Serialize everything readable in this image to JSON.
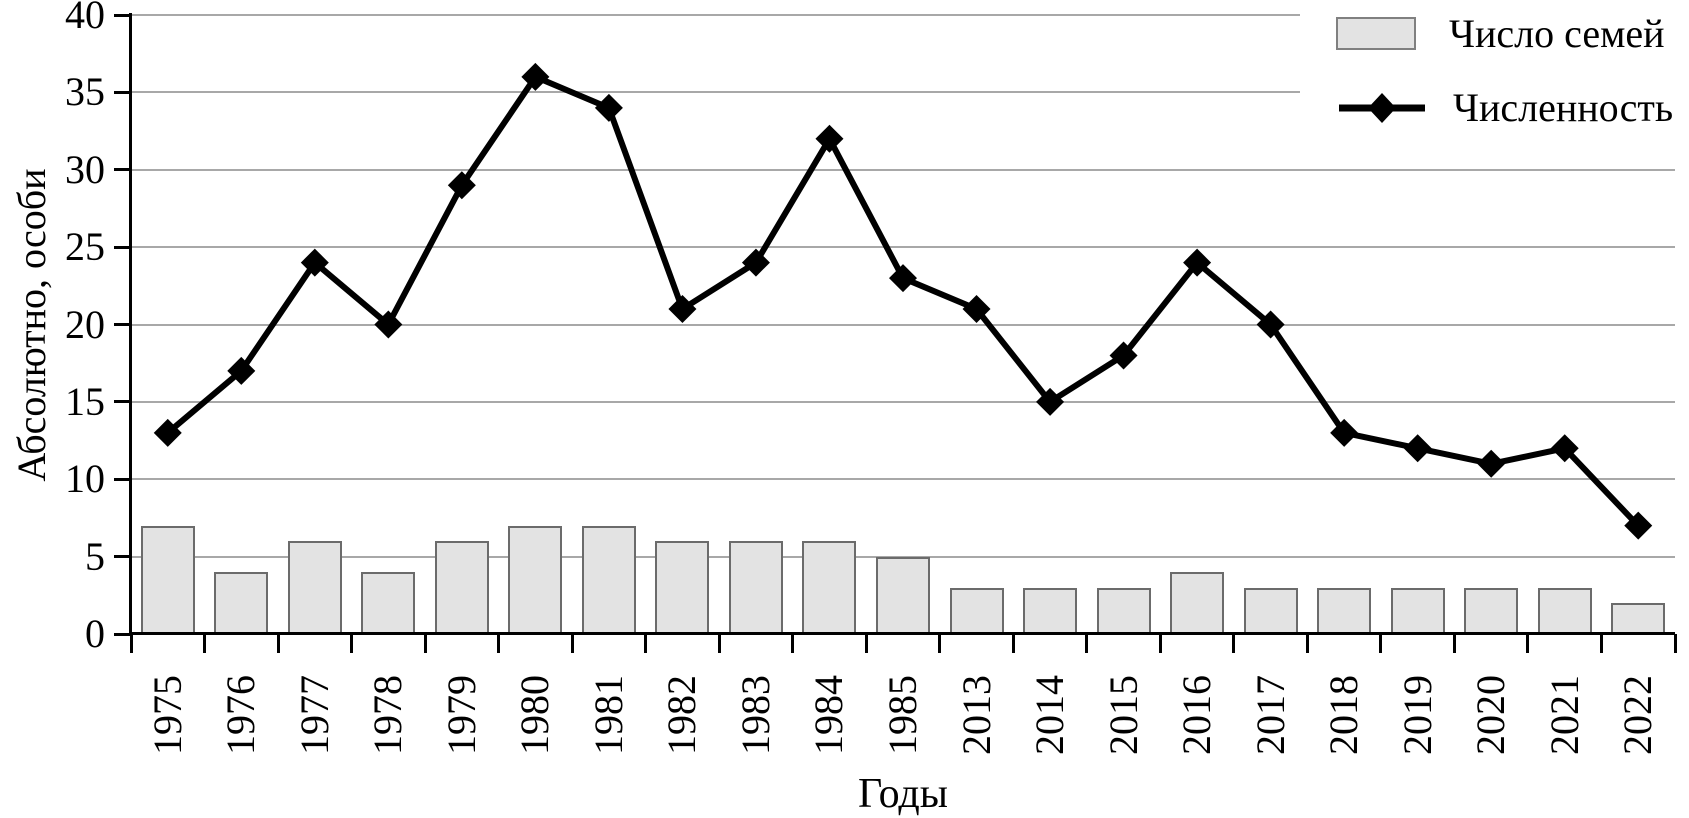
{
  "chart_data": {
    "type": "combo-bar-line",
    "categories": [
      "1975",
      "1976",
      "1977",
      "1978",
      "1979",
      "1980",
      "1981",
      "1982",
      "1983",
      "1984",
      "1985",
      "2013",
      "2014",
      "2015",
      "2016",
      "2017",
      "2018",
      "2019",
      "2020",
      "2021",
      "2022"
    ],
    "series": [
      {
        "name": "Число семей",
        "type": "bar",
        "values": [
          7,
          4,
          6,
          4,
          6,
          7,
          7,
          6,
          6,
          6,
          5,
          3,
          3,
          3,
          4,
          3,
          3,
          3,
          3,
          3,
          2
        ]
      },
      {
        "name": "Численность",
        "type": "line",
        "marker": "diamond",
        "values": [
          13,
          17,
          24,
          20,
          29,
          36,
          34,
          21,
          24,
          32,
          23,
          21,
          15,
          18,
          24,
          20,
          13,
          12,
          11,
          12,
          7
        ]
      }
    ],
    "xlabel": "Годы",
    "ylabel": "Абсолютно, особи",
    "ylim": [
      0,
      40
    ],
    "ytick_step": 5,
    "yticks": [
      "0",
      "5",
      "10",
      "15",
      "20",
      "25",
      "30",
      "35",
      "40"
    ],
    "grid": true,
    "legend_position": "top-right",
    "colors": {
      "bar_fill": "#e3e3e3",
      "bar_border": "#6b6b6b",
      "line": "#000000",
      "gridline": "#a8a8a8",
      "axis": "#000000",
      "text": "#000000",
      "background": "#ffffff"
    }
  }
}
